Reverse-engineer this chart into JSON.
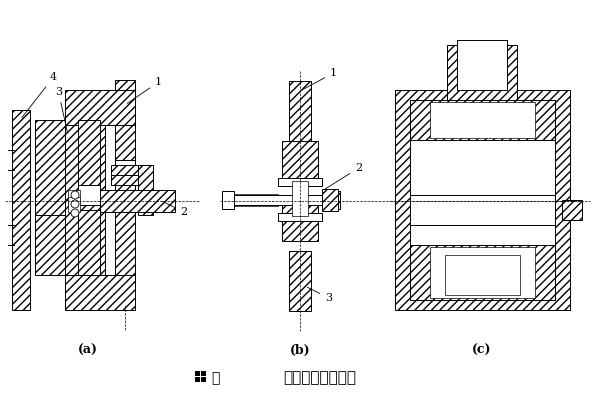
{
  "fig_number_text": "圖",
  "caption_text": "滾動軸承式轉動副",
  "label_a": "(a)",
  "label_b": "(b)",
  "label_c": "(c)",
  "bg_color": "#f0ede8",
  "figsize": [
    5.94,
    4.0
  ],
  "dpi": 100
}
